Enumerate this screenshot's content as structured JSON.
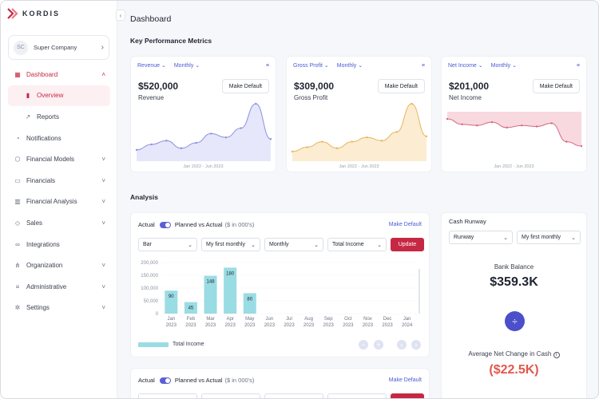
{
  "brand": {
    "name": "KORDIS",
    "accent": "#c62843"
  },
  "company": {
    "initials": "SC",
    "name": "Super Company"
  },
  "nav": [
    {
      "label": "Dashboard",
      "icon": "grid-icon",
      "arrow": "˄",
      "active": true
    },
    {
      "label": "Overview",
      "icon": "bar-chart-icon",
      "sub": true,
      "active": true
    },
    {
      "label": "Reports",
      "icon": "trend-icon",
      "sub": true
    },
    {
      "label": "Notifications",
      "icon": "bell-icon"
    },
    {
      "label": "Financial Models",
      "icon": "cube-icon",
      "arrow": "˅"
    },
    {
      "label": "Financials",
      "icon": "money-icon",
      "arrow": "˅"
    },
    {
      "label": "Financial Analysis",
      "icon": "analysis-icon",
      "arrow": "˅"
    },
    {
      "label": "Sales",
      "icon": "tag-icon",
      "arrow": "˅"
    },
    {
      "label": "Integrations",
      "icon": "link-icon"
    },
    {
      "label": "Organization",
      "icon": "org-icon",
      "arrow": "˅"
    },
    {
      "label": "Administrative",
      "icon": "database-icon",
      "arrow": "˅"
    },
    {
      "label": "Settings",
      "icon": "gear-icon",
      "arrow": "˅"
    }
  ],
  "header": {
    "title": "Dashboard"
  },
  "kpi_section": {
    "title": "Key Performance Metrics"
  },
  "kpis": [
    {
      "metric": "Revenue",
      "period": "Monthly",
      "value": "$520,000",
      "label": "Revenue",
      "button": "Make Default",
      "range": "Jan 2022 - Jun 2023",
      "color": "#8c90e0",
      "fill": "#e6e7fa"
    },
    {
      "metric": "Gross Profit",
      "period": "Monthly",
      "value": "$309,000",
      "label": "Gross Profit",
      "button": "Make Default",
      "range": "Jan 2022 - Jun 2023",
      "color": "#e9b45e",
      "fill": "#fbecd2"
    },
    {
      "metric": "Net Income",
      "period": "Monthly",
      "value": "$201,000",
      "label": "Net Income",
      "button": "Make Default",
      "range": "Jan 2022 - Jun 2023",
      "color": "#d5697c",
      "fill": "#f7d9df"
    }
  ],
  "analysis_section": {
    "title": "Analysis"
  },
  "analysis": {
    "actual_label": "Actual",
    "toggle_label": "Planned vs Actual",
    "units": "($ in 000's)",
    "make_default": "Make Default",
    "selects": [
      "Bar",
      "My first monthly",
      "Monthly",
      "Total Income"
    ],
    "update": "Update",
    "legend": "Total Income"
  },
  "analysis2": {
    "actual_label": "Actual",
    "toggle_label": "Planned vs Actual",
    "units": "($ in 000's)",
    "make_default": "Make Default"
  },
  "chart_data": {
    "type": "bar",
    "title": "",
    "categories": [
      "Jan 2023",
      "Feb 2023",
      "Mar 2023",
      "Apr 2023",
      "May 2023",
      "Jun 2023",
      "Jul 2023",
      "Aug 2023",
      "Sep 2023",
      "Oct 2023",
      "Nov 2023",
      "Dec 2023",
      "Jan 2024"
    ],
    "series": [
      {
        "name": "Total Income",
        "values": [
          90,
          45,
          148,
          180,
          80,
          0,
          0,
          0,
          0,
          0,
          0,
          0,
          0
        ]
      }
    ],
    "data_labels": [
      "90",
      "45",
      "148",
      "180",
      "80",
      "",
      "",
      "",
      "",
      "",
      "",
      "",
      ""
    ],
    "y_ticks": [
      "200,000",
      "150,000",
      "100,000",
      "50,000",
      "0"
    ],
    "ylim": [
      0,
      200
    ],
    "bar_color": "#9adce3"
  },
  "cash_runway": {
    "title": "Cash Runway",
    "selects": [
      "Runway",
      "My first monthly"
    ],
    "bank_balance_label": "Bank Balance",
    "bank_balance_value": "$359.3K",
    "avg_label": "Average Net Change in Cash",
    "avg_value": "($22.5K)"
  }
}
